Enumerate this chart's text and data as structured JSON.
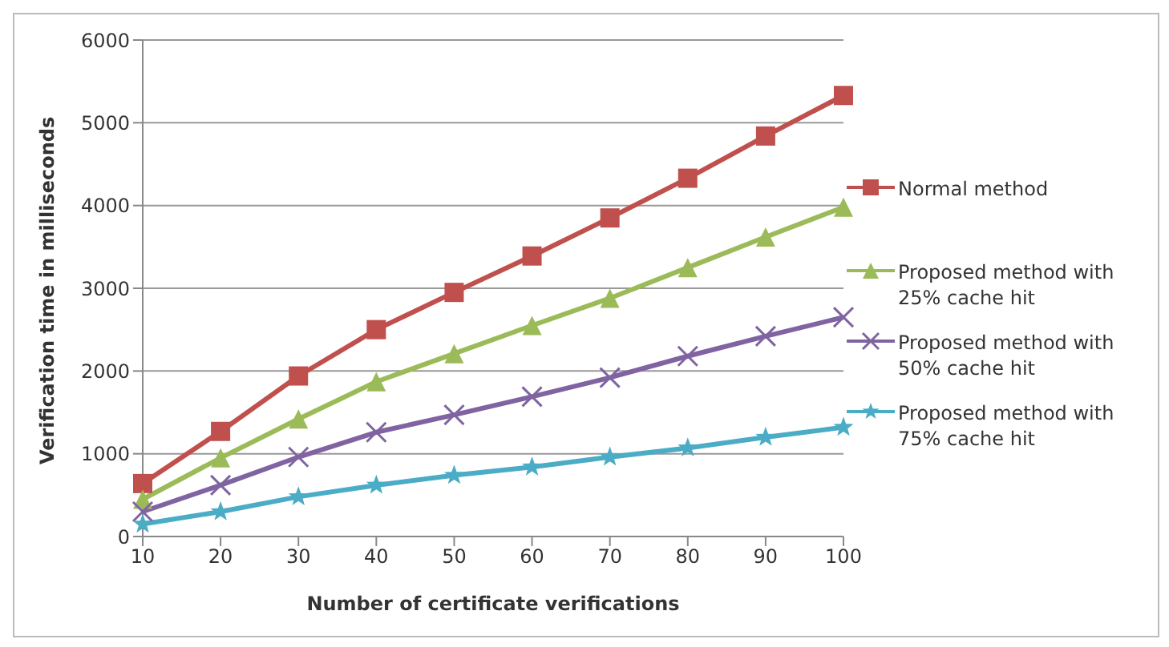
{
  "chart_data": {
    "type": "line",
    "xlabel": "Number of certificate verifications",
    "ylabel": "Verification time in milliseconds",
    "categories": [
      "10",
      "20",
      "30",
      "40",
      "50",
      "60",
      "70",
      "80",
      "90",
      "100"
    ],
    "ylim": [
      0,
      6000
    ],
    "yticks": [
      0,
      1000,
      2000,
      3000,
      4000,
      5000,
      6000
    ],
    "grid": "y",
    "legend": "right",
    "series": [
      {
        "name": "Normal method",
        "color": "#c0504d",
        "marker": "square",
        "values": [
          640,
          1270,
          1940,
          2500,
          2950,
          3390,
          3850,
          4330,
          4840,
          5330
        ]
      },
      {
        "name": "Proposed method with 25% cache hit",
        "color": "#9bbb59",
        "marker": "triangle",
        "values": [
          450,
          950,
          1420,
          1870,
          2210,
          2550,
          2880,
          3250,
          3620,
          3980
        ]
      },
      {
        "name": "Proposed method with 50% cache hit",
        "color": "#8064a2",
        "marker": "cross",
        "values": [
          300,
          620,
          960,
          1260,
          1470,
          1690,
          1920,
          2180,
          2420,
          2650
        ]
      },
      {
        "name": "Proposed method with 75% cache hit",
        "color": "#4bacc6",
        "marker": "star",
        "values": [
          150,
          300,
          480,
          620,
          740,
          840,
          960,
          1070,
          1200,
          1320
        ]
      }
    ]
  }
}
